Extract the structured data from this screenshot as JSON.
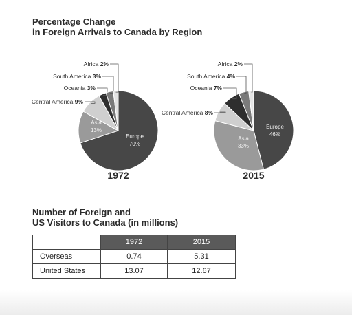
{
  "chart_title": [
    "Percentage Change",
    "in Foreign Arrivals to Canada by Region"
  ],
  "table_title": [
    "Number of Foreign and",
    "US Visitors to Canada (in millions)"
  ],
  "colors": {
    "Europe": "#474747",
    "Asia": "#9a9a9a",
    "Central America": "#cfcfcf",
    "Oceania": "#2e2e2e",
    "South America": "#7a7a7a",
    "Africa": "#e4e4e4"
  },
  "chart_data": [
    {
      "type": "pie",
      "title": "1972",
      "slices": [
        {
          "label": "Europe",
          "value": 70
        },
        {
          "label": "Asia",
          "value": 13
        },
        {
          "label": "Central America",
          "value": 9
        },
        {
          "label": "Oceania",
          "value": 3
        },
        {
          "label": "South America",
          "value": 3
        },
        {
          "label": "Africa",
          "value": 2
        }
      ]
    },
    {
      "type": "pie",
      "title": "2015",
      "slices": [
        {
          "label": "Europe",
          "value": 46
        },
        {
          "label": "Asia",
          "value": 33
        },
        {
          "label": "Central America",
          "value": 8
        },
        {
          "label": "Oceania",
          "value": 7
        },
        {
          "label": "South America",
          "value": 4
        },
        {
          "label": "Africa",
          "value": 2
        }
      ]
    },
    {
      "type": "table",
      "columns": [
        "",
        "1972",
        "2015"
      ],
      "rows": [
        [
          "Overseas",
          "0.74",
          "5.31"
        ],
        [
          "United States",
          "13.07",
          "12.67"
        ]
      ]
    }
  ]
}
